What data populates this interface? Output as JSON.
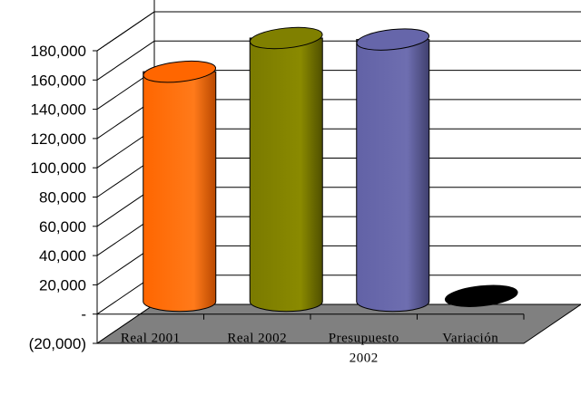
{
  "chart_data": {
    "type": "bar",
    "subtype": "3d-cylinder",
    "title": "",
    "xlabel": "",
    "ylabel": "",
    "categories": [
      [
        "Real 2001"
      ],
      [
        "Real 2002"
      ],
      [
        "Presupuesto",
        "2002"
      ],
      [
        "Variación"
      ]
    ],
    "values": [
      157000,
      180000,
      179000,
      0
    ],
    "ylim": [
      -20000,
      180000
    ],
    "yticks": [
      "(20,000)",
      "-",
      "20,000",
      "40,000",
      "60,000",
      "80,000",
      "100,000",
      "120,000",
      "140,000",
      "160,000",
      "180,000"
    ],
    "colors": [
      "#FF6600",
      "#808000",
      "#6666AA",
      "#000000"
    ],
    "floor_color": "#808080",
    "grid": true,
    "legend": "none"
  }
}
